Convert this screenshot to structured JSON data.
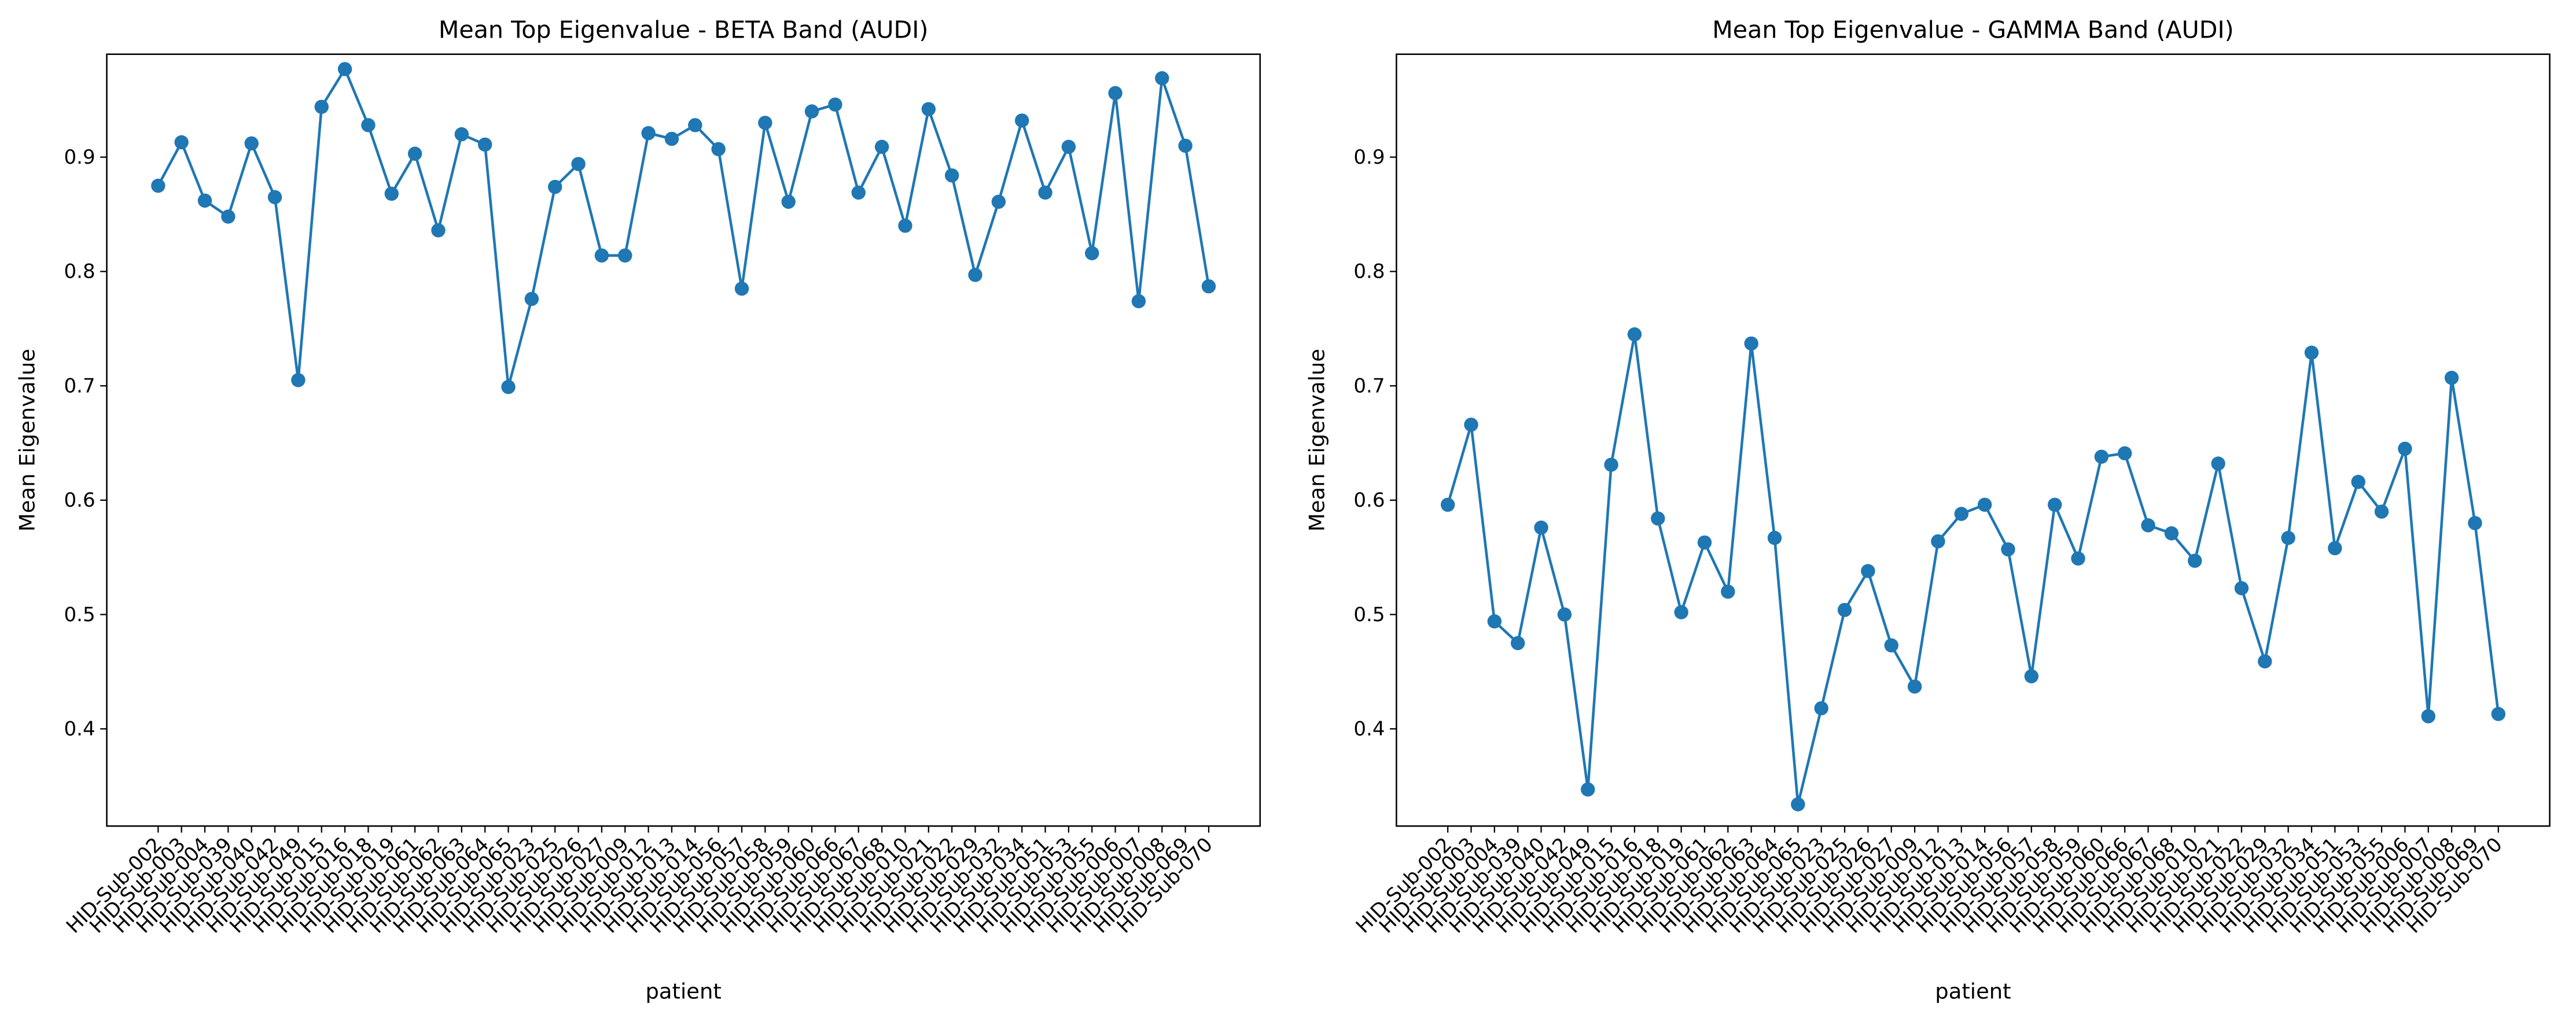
{
  "chart_data": [
    {
      "type": "line",
      "title": "Mean Top Eigenvalue - BETA Band (AUDI)",
      "xlabel": "patient",
      "ylabel": "Mean Eigenvalue",
      "color": "#1f77b4",
      "marker": true,
      "categories": [
        "HID-Sub-002",
        "HID-Sub-003",
        "HID-Sub-004",
        "HID-Sub-039",
        "HID-Sub-040",
        "HID-Sub-042",
        "HID-Sub-049",
        "HID-Sub-015",
        "HID-Sub-016",
        "HID-Sub-018",
        "HID-Sub-019",
        "HID-Sub-061",
        "HID-Sub-062",
        "HID-Sub-063",
        "HID-Sub-064",
        "HID-Sub-065",
        "HID-Sub-023",
        "HID-Sub-025",
        "HID-Sub-026",
        "HID-Sub-027",
        "HID-Sub-009",
        "HID-Sub-012",
        "HID-Sub-013",
        "HID-Sub-014",
        "HID-Sub-056",
        "HID-Sub-057",
        "HID-Sub-058",
        "HID-Sub-059",
        "HID-Sub-060",
        "HID-Sub-066",
        "HID-Sub-067",
        "HID-Sub-068",
        "HID-Sub-010",
        "HID-Sub-021",
        "HID-Sub-022",
        "HID-Sub-029",
        "HID-Sub-032",
        "HID-Sub-034",
        "HID-Sub-051",
        "HID-Sub-053",
        "HID-Sub-055",
        "HID-Sub-006",
        "HID-Sub-007",
        "HID-Sub-008",
        "HID-Sub-069",
        "HID-Sub-070"
      ],
      "values": [
        0.875,
        0.913,
        0.862,
        0.848,
        0.912,
        0.865,
        0.705,
        0.944,
        0.977,
        0.928,
        0.868,
        0.903,
        0.836,
        0.92,
        0.911,
        0.699,
        0.776,
        0.874,
        0.894,
        0.814,
        0.814,
        0.921,
        0.916,
        0.928,
        0.907,
        0.785,
        0.93,
        0.861,
        0.94,
        0.946,
        0.869,
        0.909,
        0.84,
        0.942,
        0.884,
        0.797,
        0.861,
        0.932,
        0.869,
        0.909,
        0.816,
        0.956,
        0.774,
        0.969,
        0.91,
        0.787
      ],
      "ylim": [
        0.315,
        0.99
      ],
      "yticks": [
        0.4,
        0.5,
        0.6,
        0.7,
        0.8,
        0.9
      ]
    },
    {
      "type": "line",
      "title": "Mean Top Eigenvalue - GAMMA Band (AUDI)",
      "xlabel": "patient",
      "ylabel": "Mean Eigenvalue",
      "color": "#1f77b4",
      "marker": true,
      "categories": [
        "HID-Sub-002",
        "HID-Sub-003",
        "HID-Sub-004",
        "HID-Sub-039",
        "HID-Sub-040",
        "HID-Sub-042",
        "HID-Sub-049",
        "HID-Sub-015",
        "HID-Sub-016",
        "HID-Sub-018",
        "HID-Sub-019",
        "HID-Sub-061",
        "HID-Sub-062",
        "HID-Sub-063",
        "HID-Sub-064",
        "HID-Sub-065",
        "HID-Sub-023",
        "HID-Sub-025",
        "HID-Sub-026",
        "HID-Sub-027",
        "HID-Sub-009",
        "HID-Sub-012",
        "HID-Sub-013",
        "HID-Sub-014",
        "HID-Sub-056",
        "HID-Sub-057",
        "HID-Sub-058",
        "HID-Sub-059",
        "HID-Sub-060",
        "HID-Sub-066",
        "HID-Sub-067",
        "HID-Sub-068",
        "HID-Sub-010",
        "HID-Sub-021",
        "HID-Sub-022",
        "HID-Sub-029",
        "HID-Sub-032",
        "HID-Sub-034",
        "HID-Sub-051",
        "HID-Sub-053",
        "HID-Sub-055",
        "HID-Sub-006",
        "HID-Sub-007",
        "HID-Sub-008",
        "HID-Sub-069",
        "HID-Sub-070"
      ],
      "values": [
        0.596,
        0.666,
        0.494,
        0.475,
        0.576,
        0.5,
        0.347,
        0.631,
        0.745,
        0.584,
        0.502,
        0.563,
        0.52,
        0.737,
        0.567,
        0.334,
        0.418,
        0.504,
        0.538,
        0.473,
        0.437,
        0.564,
        0.588,
        0.596,
        0.557,
        0.446,
        0.596,
        0.549,
        0.638,
        0.641,
        0.578,
        0.571,
        0.547,
        0.632,
        0.523,
        0.459,
        0.567,
        0.729,
        0.558,
        0.616,
        0.59,
        0.645,
        0.411,
        0.707,
        0.58,
        0.413
      ],
      "ylim": [
        0.315,
        0.99
      ],
      "yticks": [
        0.4,
        0.5,
        0.6,
        0.7,
        0.8,
        0.9
      ]
    }
  ]
}
